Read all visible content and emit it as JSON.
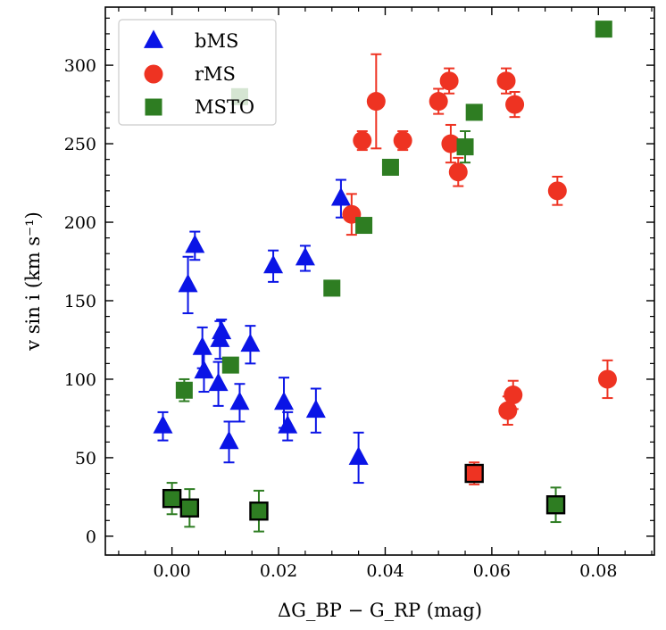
{
  "chart_data": {
    "type": "scatter",
    "xlabel": "ΔG_BP − G_RP (mag)",
    "ylabel": "v sin i (km s⁻¹)",
    "xlim": [
      -0.0125,
      0.0905
    ],
    "ylim": [
      -12,
      337
    ],
    "xticks": [
      0.0,
      0.02,
      0.04,
      0.06,
      0.08
    ],
    "xtick_labels": [
      "0.00",
      "0.02",
      "0.04",
      "0.06",
      "0.08"
    ],
    "yticks": [
      0,
      50,
      100,
      150,
      200,
      250,
      300
    ],
    "ytick_labels": [
      "0",
      "50",
      "100",
      "150",
      "200",
      "250",
      "300"
    ],
    "grid": false,
    "legend_position": "top-left",
    "colors": {
      "bMS": "#0a14e6",
      "rMS": "#ee3322",
      "MSTO": "#2e7d22"
    },
    "series": [
      {
        "name": "bMS",
        "marker": "triangle",
        "points": [
          {
            "x": -0.0017,
            "y": 70,
            "err": 9
          },
          {
            "x": 0.003,
            "y": 160,
            "err": 18
          },
          {
            "x": 0.0043,
            "y": 185,
            "err": 9
          },
          {
            "x": 0.0057,
            "y": 120,
            "err": 13
          },
          {
            "x": 0.006,
            "y": 105,
            "err": 13
          },
          {
            "x": 0.0087,
            "y": 97,
            "err": 14
          },
          {
            "x": 0.009,
            "y": 125,
            "err": 12
          },
          {
            "x": 0.0093,
            "y": 130,
            "err": 8
          },
          {
            "x": 0.0107,
            "y": 60,
            "err": 13
          },
          {
            "x": 0.0127,
            "y": 85,
            "err": 12
          },
          {
            "x": 0.0147,
            "y": 122,
            "err": 12
          },
          {
            "x": 0.019,
            "y": 172,
            "err": 10
          },
          {
            "x": 0.021,
            "y": 85,
            "err": 16
          },
          {
            "x": 0.0217,
            "y": 70,
            "err": 9
          },
          {
            "x": 0.025,
            "y": 177,
            "err": 8
          },
          {
            "x": 0.027,
            "y": 80,
            "err": 14
          },
          {
            "x": 0.0317,
            "y": 215,
            "err": 12
          },
          {
            "x": 0.035,
            "y": 50,
            "err": 16
          }
        ]
      },
      {
        "name": "rMS",
        "marker": "circle",
        "points": [
          {
            "x": 0.0337,
            "y": 205,
            "err": 13
          },
          {
            "x": 0.0357,
            "y": 252,
            "err": 6
          },
          {
            "x": 0.0383,
            "y": 277,
            "err": 30
          },
          {
            "x": 0.0433,
            "y": 252,
            "err": 6
          },
          {
            "x": 0.05,
            "y": 277,
            "err": 8
          },
          {
            "x": 0.052,
            "y": 290,
            "err": 8
          },
          {
            "x": 0.0523,
            "y": 250,
            "err": 12
          },
          {
            "x": 0.0537,
            "y": 232,
            "err": 9
          },
          {
            "x": 0.0627,
            "y": 290,
            "err": 8
          },
          {
            "x": 0.063,
            "y": 80,
            "err": 9
          },
          {
            "x": 0.064,
            "y": 90,
            "err": 9
          },
          {
            "x": 0.0643,
            "y": 275,
            "err": 8
          },
          {
            "x": 0.0723,
            "y": 220,
            "err": 9
          },
          {
            "x": 0.0817,
            "y": 100,
            "err": 12
          }
        ]
      },
      {
        "name": "MSTO",
        "marker": "square",
        "points": [
          {
            "x": 0.0023,
            "y": 93,
            "err": 7
          },
          {
            "x": 0.011,
            "y": 109,
            "err": 0
          },
          {
            "x": 0.0127,
            "y": 280,
            "err": 0
          },
          {
            "x": 0.03,
            "y": 158,
            "err": 0
          },
          {
            "x": 0.036,
            "y": 198,
            "err": 0
          },
          {
            "x": 0.041,
            "y": 235,
            "err": 0
          },
          {
            "x": 0.055,
            "y": 248,
            "err": 10
          },
          {
            "x": 0.0567,
            "y": 270,
            "err": 0
          },
          {
            "x": 0.081,
            "y": 323,
            "err": 0
          }
        ]
      },
      {
        "name": "",
        "marker": "square-outlined",
        "points": [
          {
            "x": 0.0,
            "y": 24,
            "err": 10,
            "color": "#2e7d22"
          },
          {
            "x": 0.0033,
            "y": 18,
            "err": 12,
            "color": "#2e7d22"
          },
          {
            "x": 0.0163,
            "y": 16,
            "err": 13,
            "color": "#2e7d22"
          },
          {
            "x": 0.0567,
            "y": 40,
            "err": 7,
            "color": "#ee3322"
          },
          {
            "x": 0.072,
            "y": 20,
            "err": 11,
            "color": "#2e7d22"
          }
        ]
      }
    ],
    "legend": [
      {
        "label": "bMS",
        "marker": "triangle",
        "color": "#0a14e6"
      },
      {
        "label": "rMS",
        "marker": "circle",
        "color": "#ee3322"
      },
      {
        "label": "MSTO",
        "marker": "square",
        "color": "#2e7d22"
      }
    ]
  }
}
